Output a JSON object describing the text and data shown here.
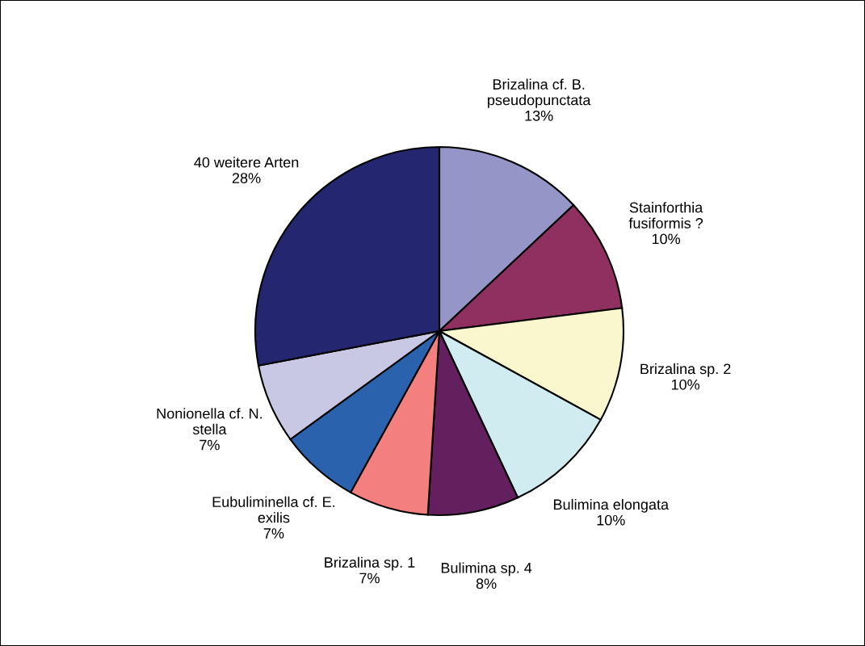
{
  "chart_data": {
    "type": "pie",
    "categories": [
      "Brizalina cf. B.\npseudopunctata",
      "Stainforthia\nfusiformis ?",
      "Brizalina sp. 2",
      "Bulimina elongata",
      "Bulimina sp. 4",
      "Brizalina sp. 1",
      "Eubuliminella cf. E.\nexilis",
      "Nonionella cf. N.\nstella",
      "40 weitere Arten"
    ],
    "values": [
      13,
      10,
      10,
      10,
      8,
      7,
      7,
      7,
      28
    ],
    "value_labels": [
      "13%",
      "10%",
      "10%",
      "10%",
      "8%",
      "7%",
      "7%",
      "7%",
      "28%"
    ],
    "colors": [
      "#9595c8",
      "#8f3060",
      "#faf7cf",
      "#d0ecf0",
      "#631f5e",
      "#f47f7f",
      "#2a62ae",
      "#c9c8e4",
      "#252670"
    ],
    "legend": false
  }
}
